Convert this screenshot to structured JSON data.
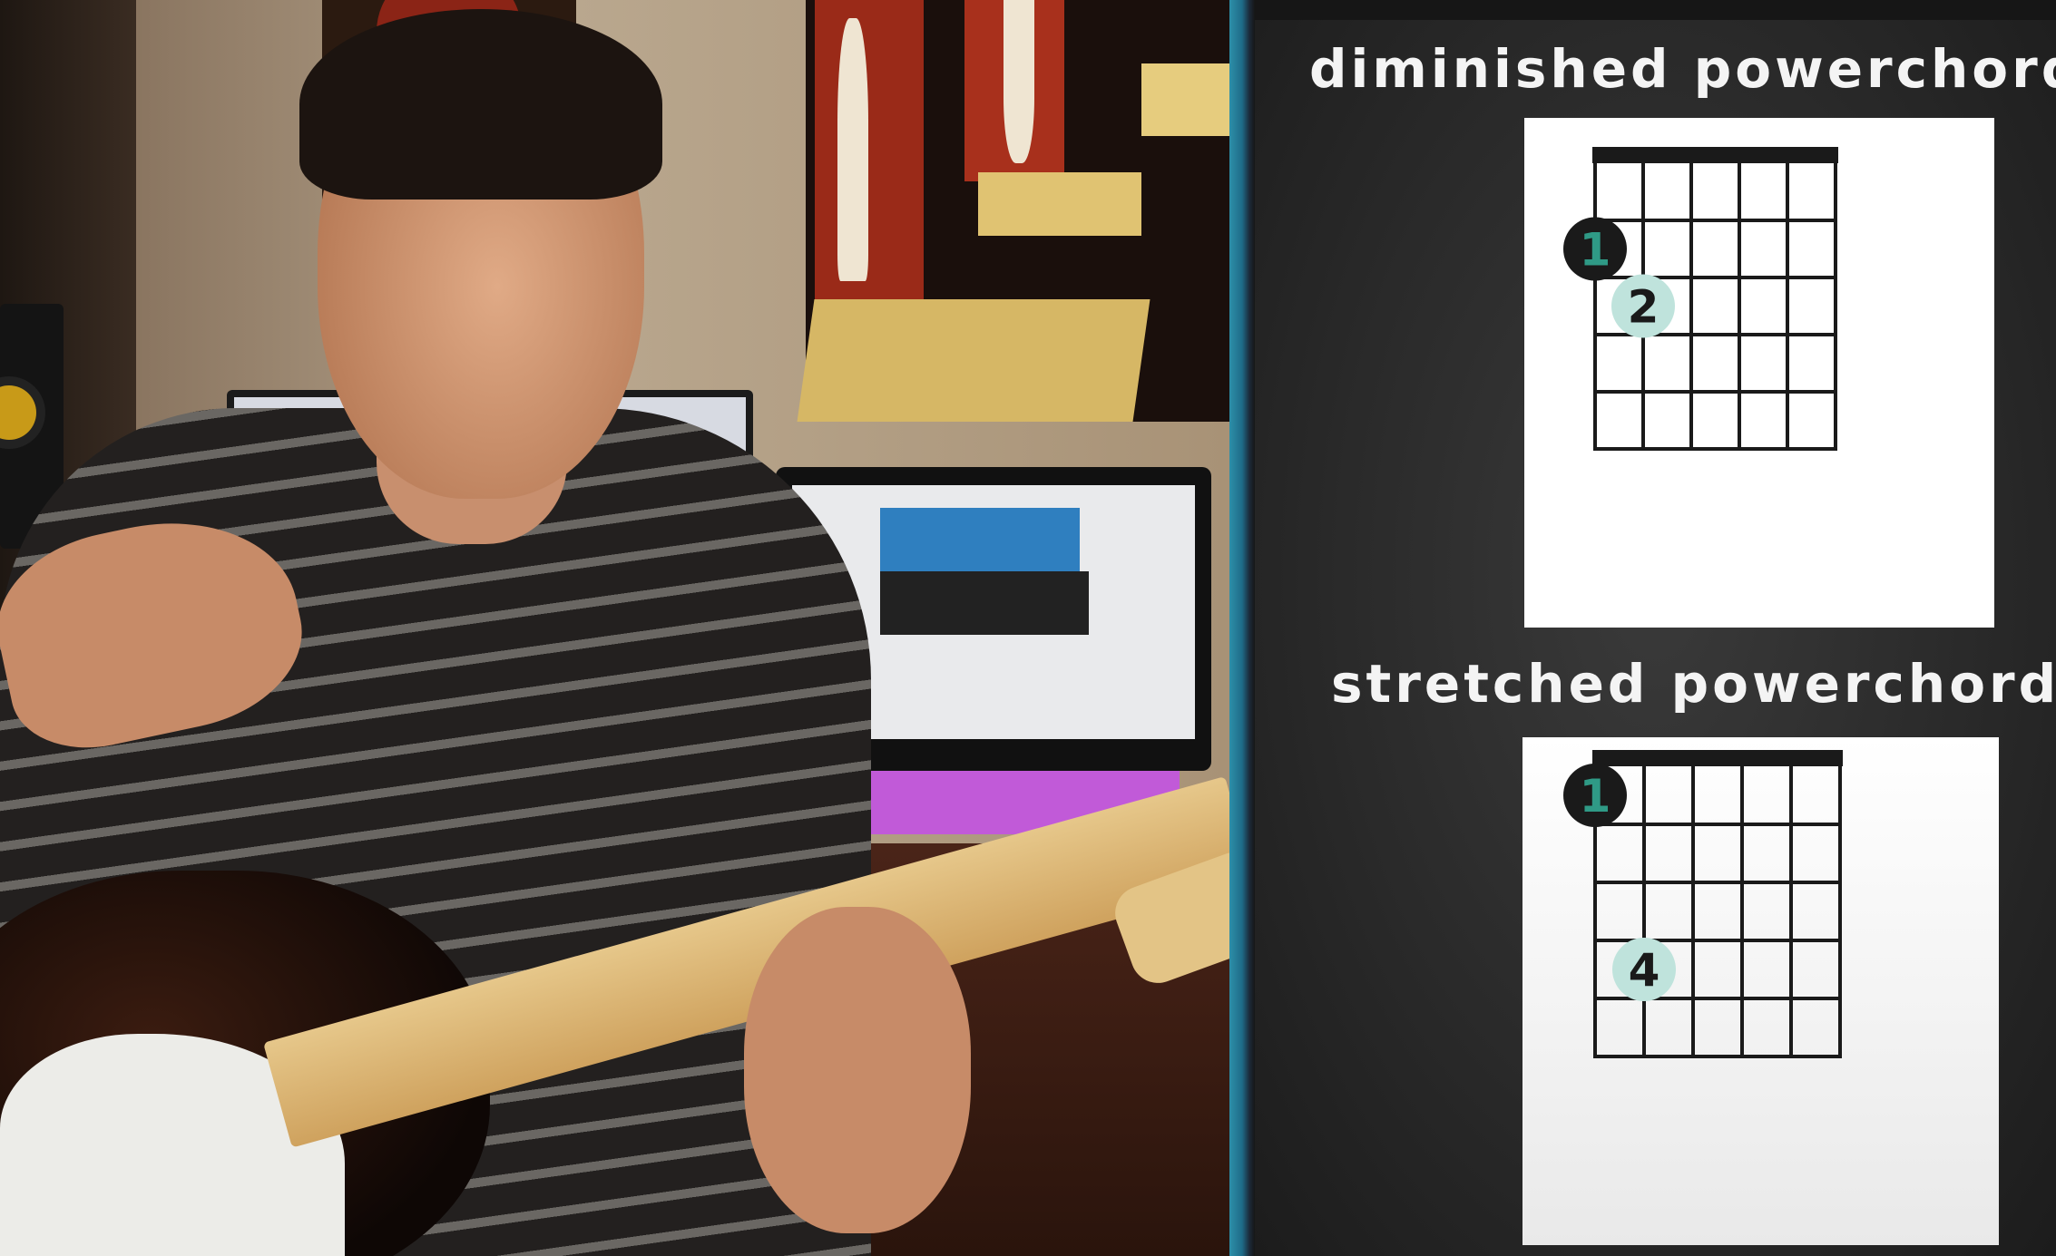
{
  "chords": [
    {
      "title": "diminished powerchord",
      "fingers": [
        {
          "label": "1",
          "string": 1,
          "fret": 2,
          "style": "dark"
        },
        {
          "label": "2",
          "string": 2,
          "fret": 3,
          "style": "light"
        }
      ]
    },
    {
      "title": "stretched powerchord",
      "fingers": [
        {
          "label": "1",
          "string": 1,
          "fret": 1,
          "style": "dark"
        },
        {
          "label": "4",
          "string": 2,
          "fret": 4,
          "style": "light"
        }
      ]
    }
  ],
  "colors": {
    "finger_dark_fill": "#1a1a1a",
    "finger_dark_text": "#2f9a86",
    "finger_light_fill": "#bfe3dc",
    "finger_light_text": "#1a1a1a",
    "grid": "#1a1a1a",
    "panel_accent": "#2d8fa9"
  }
}
